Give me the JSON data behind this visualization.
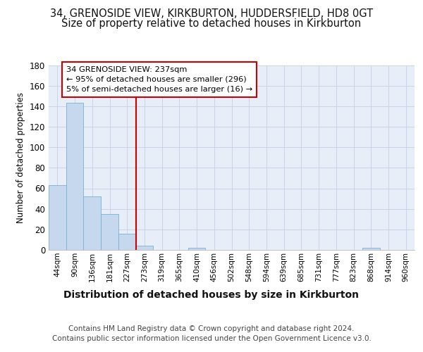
{
  "title1": "34, GRENOSIDE VIEW, KIRKBURTON, HUDDERSFIELD, HD8 0GT",
  "title2": "Size of property relative to detached houses in Kirkburton",
  "xlabel": "Distribution of detached houses by size in Kirkburton",
  "ylabel": "Number of detached properties",
  "categories": [
    "44sqm",
    "90sqm",
    "136sqm",
    "181sqm",
    "227sqm",
    "273sqm",
    "319sqm",
    "365sqm",
    "410sqm",
    "456sqm",
    "502sqm",
    "548sqm",
    "594sqm",
    "639sqm",
    "685sqm",
    "731sqm",
    "777sqm",
    "823sqm",
    "868sqm",
    "914sqm",
    "960sqm"
  ],
  "values": [
    63,
    143,
    52,
    35,
    16,
    4,
    0,
    0,
    2,
    0,
    0,
    0,
    0,
    0,
    0,
    0,
    0,
    0,
    2,
    0,
    0
  ],
  "bar_color": "#c5d8ed",
  "bar_edge_color": "#7bafd4",
  "vline_color": "#cc0000",
  "annotation_line1": "34 GRENOSIDE VIEW: 237sqm",
  "annotation_line2": "← 95% of detached houses are smaller (296)",
  "annotation_line3": "5% of semi-detached houses are larger (16) →",
  "annotation_box_color": "#cc0000",
  "ylim": [
    0,
    180
  ],
  "yticks": [
    0,
    20,
    40,
    60,
    80,
    100,
    120,
    140,
    160,
    180
  ],
  "grid_color": "#c8d4e8",
  "bg_color": "#e8eef8",
  "footer_text": "Contains HM Land Registry data © Crown copyright and database right 2024.\nContains public sector information licensed under the Open Government Licence v3.0.",
  "title1_fontsize": 10.5,
  "title2_fontsize": 10.5,
  "xlabel_fontsize": 10,
  "ylabel_fontsize": 8.5,
  "footer_fontsize": 7.5
}
